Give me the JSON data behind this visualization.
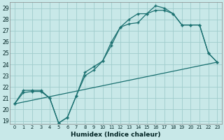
{
  "xlabel": "Humidex (Indice chaleur)",
  "xlim": [
    -0.5,
    23.5
  ],
  "ylim": [
    18.7,
    29.5
  ],
  "yticks": [
    19,
    20,
    21,
    22,
    23,
    24,
    25,
    26,
    27,
    28,
    29
  ],
  "xticks": [
    0,
    1,
    2,
    3,
    4,
    5,
    6,
    7,
    8,
    9,
    10,
    11,
    12,
    13,
    14,
    15,
    16,
    17,
    18,
    19,
    20,
    21,
    22,
    23
  ],
  "bg_color": "#c8e8e8",
  "line_color": "#1a7070",
  "grid_color": "#a0cccc",
  "line1_x": [
    0,
    1,
    2,
    3,
    4,
    5,
    6,
    7,
    8,
    9,
    10,
    11,
    12,
    13,
    14,
    15,
    16,
    17,
    18,
    19,
    20,
    21,
    22,
    23
  ],
  "line1_y": [
    20.5,
    21.5,
    21.6,
    21.6,
    21.0,
    18.8,
    19.3,
    21.2,
    23.3,
    23.8,
    24.3,
    26.0,
    27.3,
    27.6,
    27.7,
    28.5,
    29.2,
    29.0,
    28.5,
    27.5,
    27.5,
    27.5,
    25.0,
    24.2
  ],
  "line2_x": [
    0,
    1,
    2,
    3,
    4,
    5,
    6,
    7,
    8,
    9,
    10,
    11,
    12,
    13,
    14,
    15,
    16,
    17,
    18,
    19,
    20,
    21,
    22,
    23
  ],
  "line2_y": [
    20.5,
    21.7,
    21.7,
    21.7,
    21.0,
    18.8,
    19.3,
    21.2,
    23.0,
    23.5,
    24.3,
    25.7,
    27.3,
    28.0,
    28.5,
    28.5,
    28.8,
    28.8,
    28.5,
    27.5,
    27.5,
    27.5,
    25.0,
    24.2
  ],
  "line3_x": [
    0,
    23
  ],
  "line3_y": [
    20.5,
    24.2
  ]
}
